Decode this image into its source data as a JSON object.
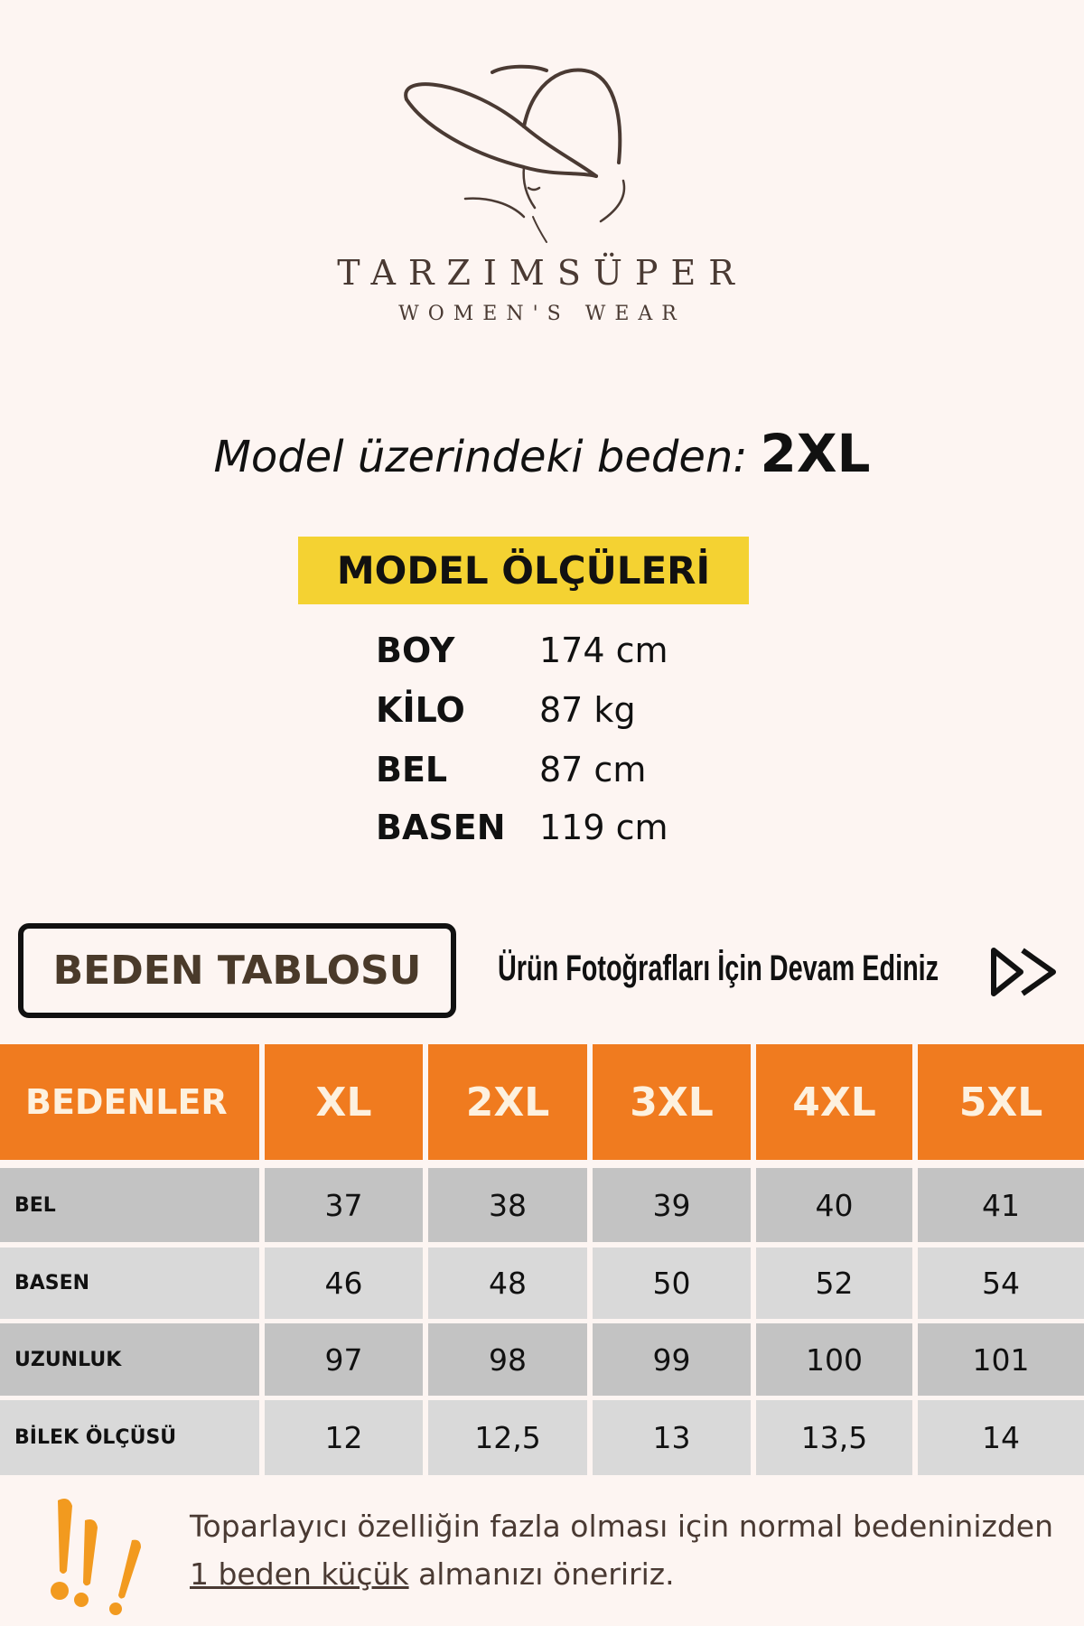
{
  "brand": {
    "name": "TARZIMSÜPER",
    "tagline": "WOMEN'S WEAR"
  },
  "model_size": {
    "label": "Model üzerindeki beden:",
    "value": "2XL"
  },
  "model_measurements": {
    "title": "MODEL ÖLÇÜLERİ",
    "rows": [
      {
        "label": "BOY",
        "value": "174 cm"
      },
      {
        "label": "KİLO",
        "value": "87 kg"
      },
      {
        "label": "BEL",
        "value": "87 cm"
      },
      {
        "label": "BASEN",
        "value": "119 cm"
      }
    ]
  },
  "size_table_label": "BEDEN TABLOSU",
  "continue_text": "Ürün Fotoğrafları İçin Devam Ediniz",
  "continue_icon": "fast-forward-icon",
  "size_table": {
    "headers": [
      "BEDENLER",
      "XL",
      "2XL",
      "3XL",
      "4XL",
      "5XL"
    ],
    "rows": [
      [
        "BEL",
        "37",
        "38",
        "39",
        "40",
        "41"
      ],
      [
        "BASEN",
        "46",
        "48",
        "50",
        "52",
        "54"
      ],
      [
        "UZUNLUK",
        "97",
        "98",
        "99",
        "100",
        "101"
      ],
      [
        "BİLEK ÖLÇÜSÜ",
        "12",
        "12,5",
        "13",
        "13,5",
        "14"
      ]
    ]
  },
  "note": {
    "icon": "exclamation-icon",
    "line1": "Toparlayıcı özelliğin fazla olması için normal bedeninizden",
    "underlined": "1 beden küçük",
    "line2_rest": " almanızı öneririz."
  },
  "colors": {
    "background": "#fdf5f2",
    "header": "#f07b1f",
    "highlight": "#f4d232",
    "row_dark": "#c3c3c3",
    "row_light": "#d9d9d9",
    "exclamation": "#f29a1f"
  }
}
